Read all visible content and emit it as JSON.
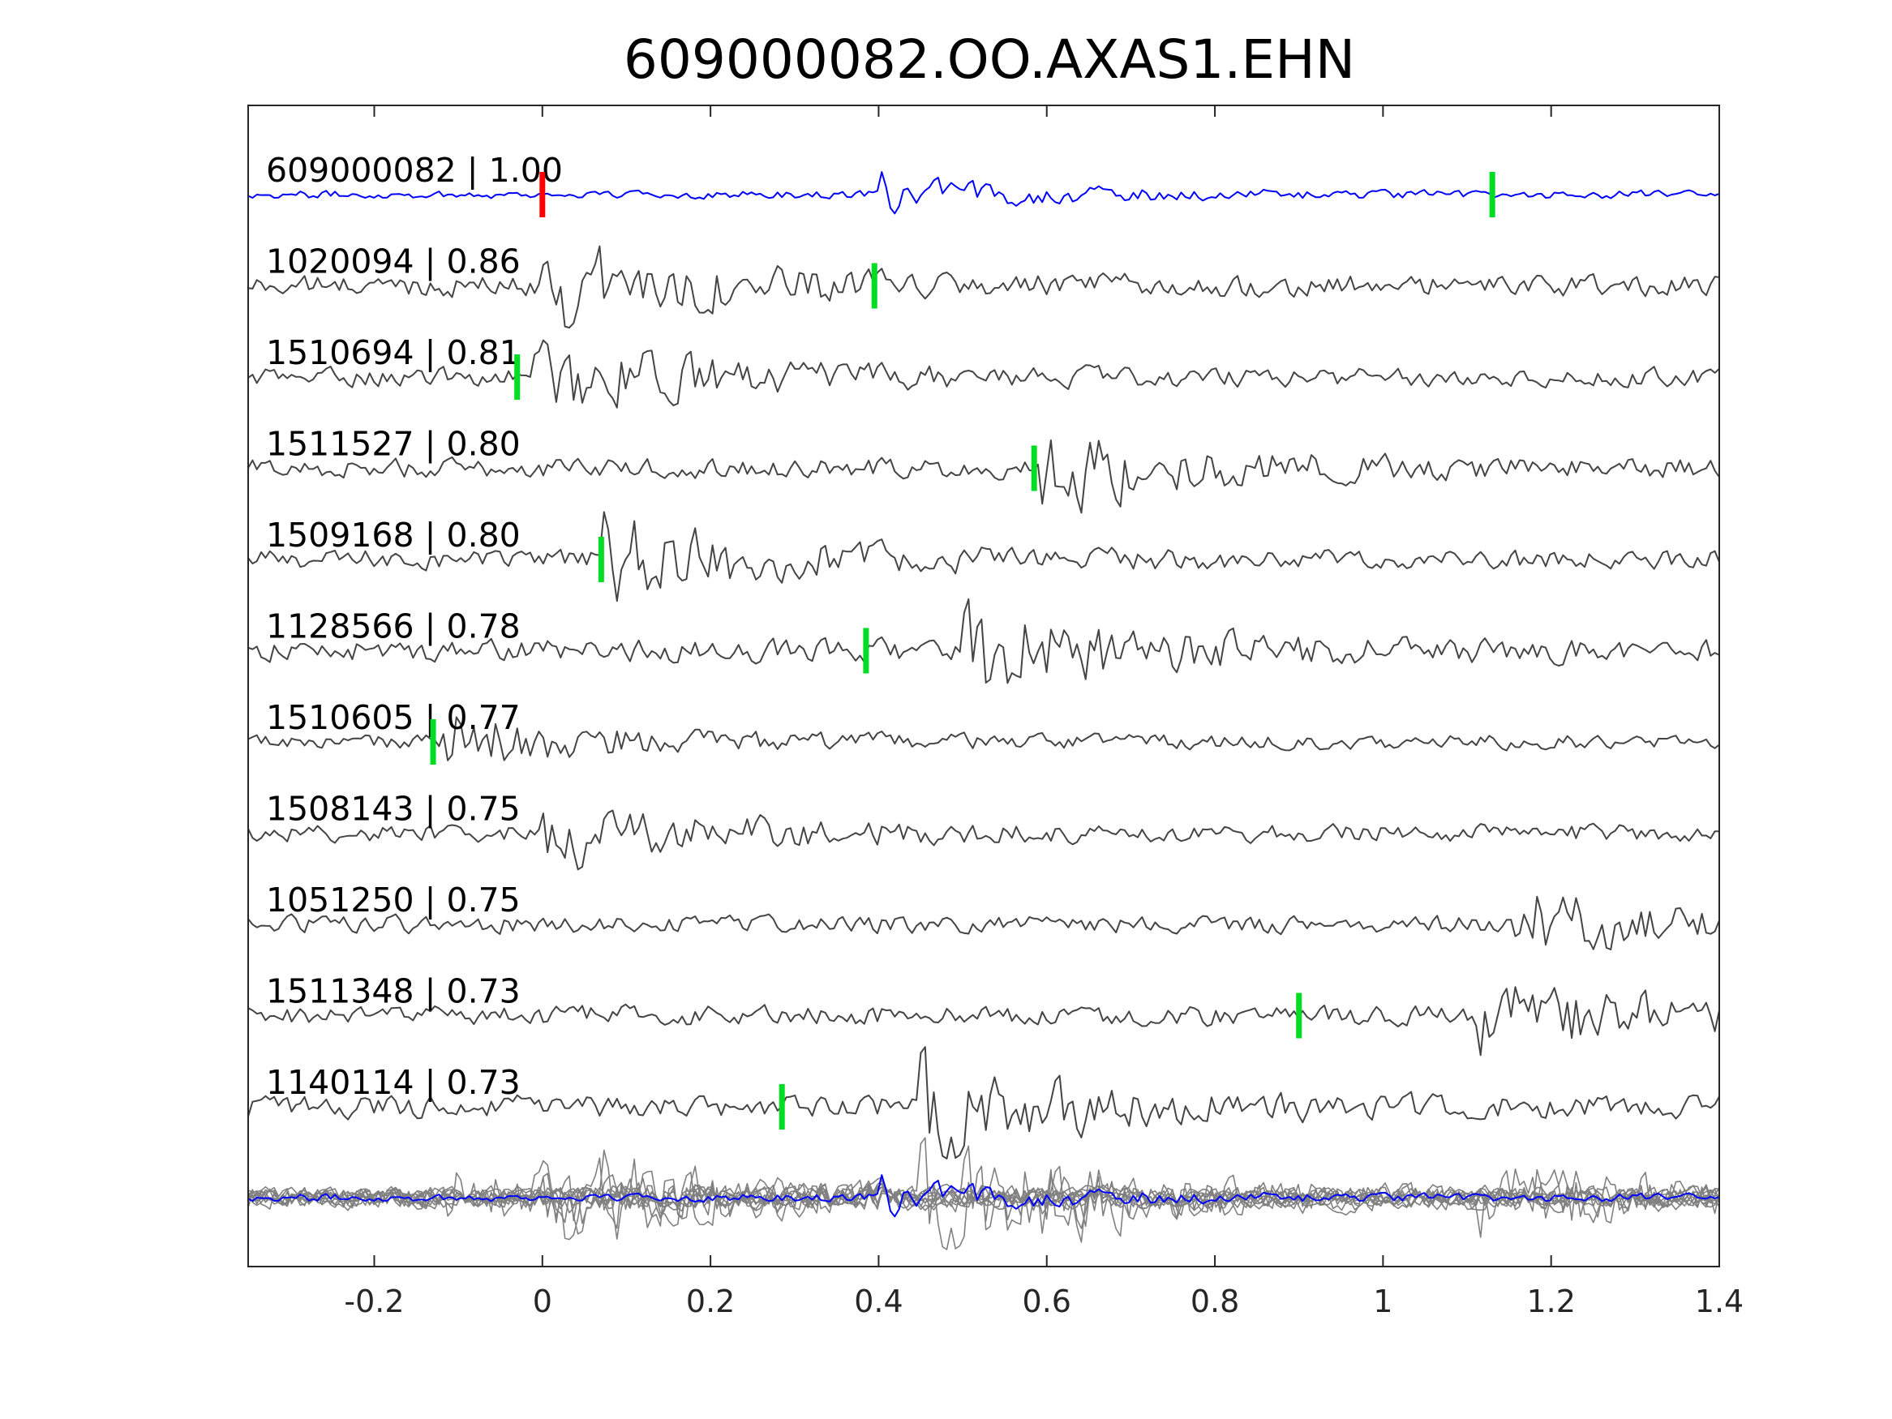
{
  "chart_data": {
    "type": "line",
    "title": "609000082.OO.AXAS1.EHN",
    "xlabel": "",
    "ylabel": "",
    "xlim": [
      -0.35,
      1.4
    ],
    "xticks": [
      -0.2,
      0,
      0.2,
      0.4,
      0.6,
      0.8,
      1,
      1.2,
      1.4
    ],
    "xtick_labels": [
      "-0.2",
      "0",
      "0.2",
      "0.4",
      "0.6",
      "0.8",
      "1",
      "1.2",
      "1.4"
    ],
    "grid": false,
    "legend": "none",
    "colors": {
      "master": "#0000ff",
      "trace": "#444444",
      "stack": "#808080",
      "reference_pick": "#ff0000",
      "pick": "#00dd22"
    },
    "traces": [
      {
        "event_id": "609000082",
        "cc": "1.00",
        "label": "609000082 | 1.00",
        "pick_time": 1.13,
        "arrival_time": 0.4,
        "amplitude": 0.3,
        "master": true
      },
      {
        "event_id": "1020094",
        "cc": "0.86",
        "label": "1020094 | 0.86",
        "pick_time": 0.395,
        "arrival_time": 0.0,
        "amplitude": 0.8
      },
      {
        "event_id": "1510694",
        "cc": "0.81",
        "label": "1510694 | 0.81",
        "pick_time": -0.03,
        "arrival_time": -0.01,
        "amplitude": 0.7
      },
      {
        "event_id": "1511527",
        "cc": "0.80",
        "label": "1511527 | 0.80",
        "pick_time": 0.585,
        "arrival_time": 0.59,
        "amplitude": 0.75
      },
      {
        "event_id": "1509168",
        "cc": "0.80",
        "label": "1509168 | 0.80",
        "pick_time": 0.07,
        "arrival_time": 0.07,
        "amplitude": 0.75
      },
      {
        "event_id": "1128566",
        "cc": "0.78",
        "label": "1128566 | 0.78",
        "pick_time": 0.385,
        "arrival_time": 0.5,
        "amplitude": 0.85
      },
      {
        "event_id": "1510605",
        "cc": "0.77",
        "label": "1510605 | 0.77",
        "pick_time": -0.13,
        "arrival_time": -0.12,
        "amplitude": 0.55
      },
      {
        "event_id": "1508143",
        "cc": "0.75",
        "label": "1508143 | 0.75",
        "pick_time": null,
        "arrival_time": 0.0,
        "amplitude": 0.65
      },
      {
        "event_id": "1051250",
        "cc": "0.75",
        "label": "1051250 | 0.75",
        "pick_time": null,
        "arrival_time": 1.15,
        "amplitude": 0.65
      },
      {
        "event_id": "1511348",
        "cc": "0.73",
        "label": "1511348 | 0.73",
        "pick_time": 0.9,
        "arrival_time": 1.11,
        "amplitude": 0.75
      },
      {
        "event_id": "1140114",
        "cc": "0.73",
        "label": "1140114 | 0.73",
        "pick_time": 0.285,
        "arrival_time": 0.45,
        "amplitude": 0.85
      }
    ],
    "reference_pick_time": 0.0
  }
}
